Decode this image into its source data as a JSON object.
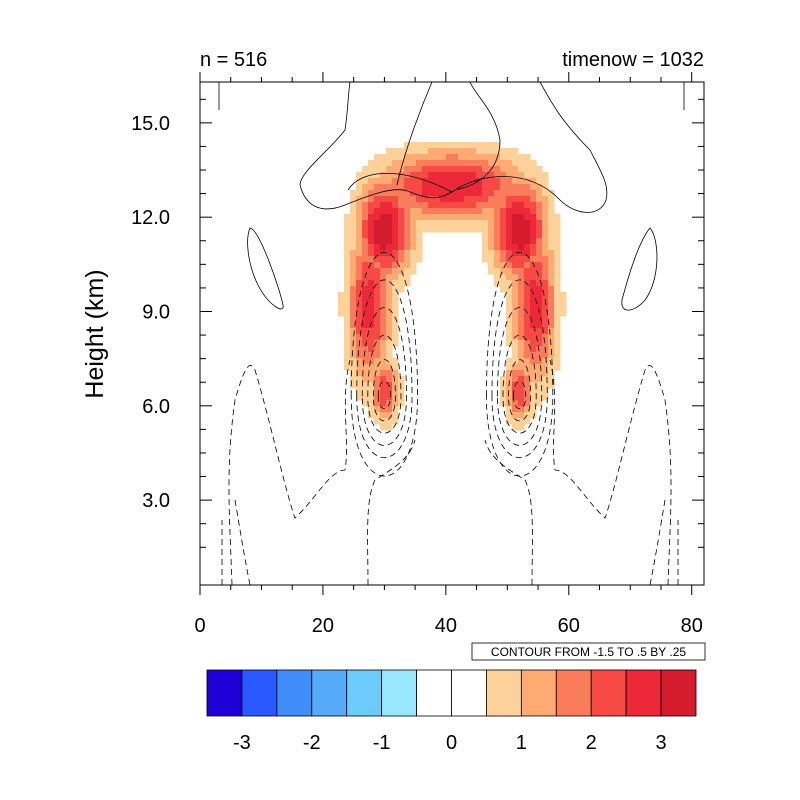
{
  "chart_data": {
    "type": "contour",
    "title_left": "n = 516",
    "title_right": "timenow = 1032",
    "xlabel": "",
    "ylabel": "Height (km)",
    "xlim": [
      0,
      82
    ],
    "ylim": [
      0.3,
      16.3
    ],
    "xticks": [
      0,
      20,
      40,
      60,
      80
    ],
    "xtick_labels": [
      "0",
      "20",
      "40",
      "60",
      "80"
    ],
    "yticks": [
      3,
      6,
      9,
      12,
      15
    ],
    "ytick_labels": [
      "3.0",
      "6.0",
      "9.0",
      "12.0",
      "15.0"
    ],
    "contour_info": "CONTOUR FROM -1.5 TO .5 BY .25",
    "colorbar": {
      "colors": [
        "#1f00d6",
        "#2a59ff",
        "#3f8cfa",
        "#56aaf7",
        "#6ccbfa",
        "#99e6ff",
        "#ffffff",
        "#ffffff",
        "#fdd19a",
        "#fdab72",
        "#fb7c5a",
        "#f74a45",
        "#ec2839",
        "#d41c2e"
      ],
      "tick_values": [
        -3,
        -2,
        -1,
        0,
        1,
        2,
        3
      ],
      "tick_labels": [
        "-3",
        "-2",
        "-1",
        "0",
        "1",
        "2",
        "3"
      ],
      "vmin": -3.5,
      "vmax": 3.5
    },
    "filled_field": {
      "description_levels": [
        0.5,
        1.0,
        1.5,
        2.0,
        2.5,
        3.0
      ],
      "blobs": [
        {
          "x": 41,
          "y": 13.0,
          "rx": 12,
          "ry": 1.1,
          "amp": 3.0
        },
        {
          "x": 30,
          "y": 11.6,
          "rx": 4.5,
          "ry": 1.6,
          "amp": 3.4
        },
        {
          "x": 52,
          "y": 11.6,
          "rx": 4.5,
          "ry": 1.6,
          "amp": 3.4
        },
        {
          "x": 27.5,
          "y": 9.2,
          "rx": 3.5,
          "ry": 2.5,
          "amp": 2.8
        },
        {
          "x": 54.5,
          "y": 9.2,
          "rx": 3.5,
          "ry": 2.5,
          "amp": 2.8
        },
        {
          "x": 30,
          "y": 6.5,
          "rx": 2.3,
          "ry": 1.0,
          "amp": 2.4
        },
        {
          "x": 52,
          "y": 6.5,
          "rx": 2.3,
          "ry": 1.0,
          "amp": 2.4
        }
      ]
    },
    "negative_contours": {
      "left_center": [
        30,
        6.3
      ],
      "right_center": [
        52,
        6.3
      ],
      "rings": [
        {
          "rx": 1.0,
          "yt": 0.5,
          "yb": 0.4
        },
        {
          "rx": 1.8,
          "yt": 1.2,
          "yb": 0.8
        },
        {
          "rx": 2.7,
          "yt": 2.0,
          "yb": 1.2
        },
        {
          "rx": 3.6,
          "yt": 2.9,
          "yb": 1.6
        },
        {
          "rx": 4.5,
          "yt": 3.8,
          "yb": 2.0
        },
        {
          "rx": 5.4,
          "yt": 4.7,
          "yb": 2.6
        }
      ]
    }
  }
}
